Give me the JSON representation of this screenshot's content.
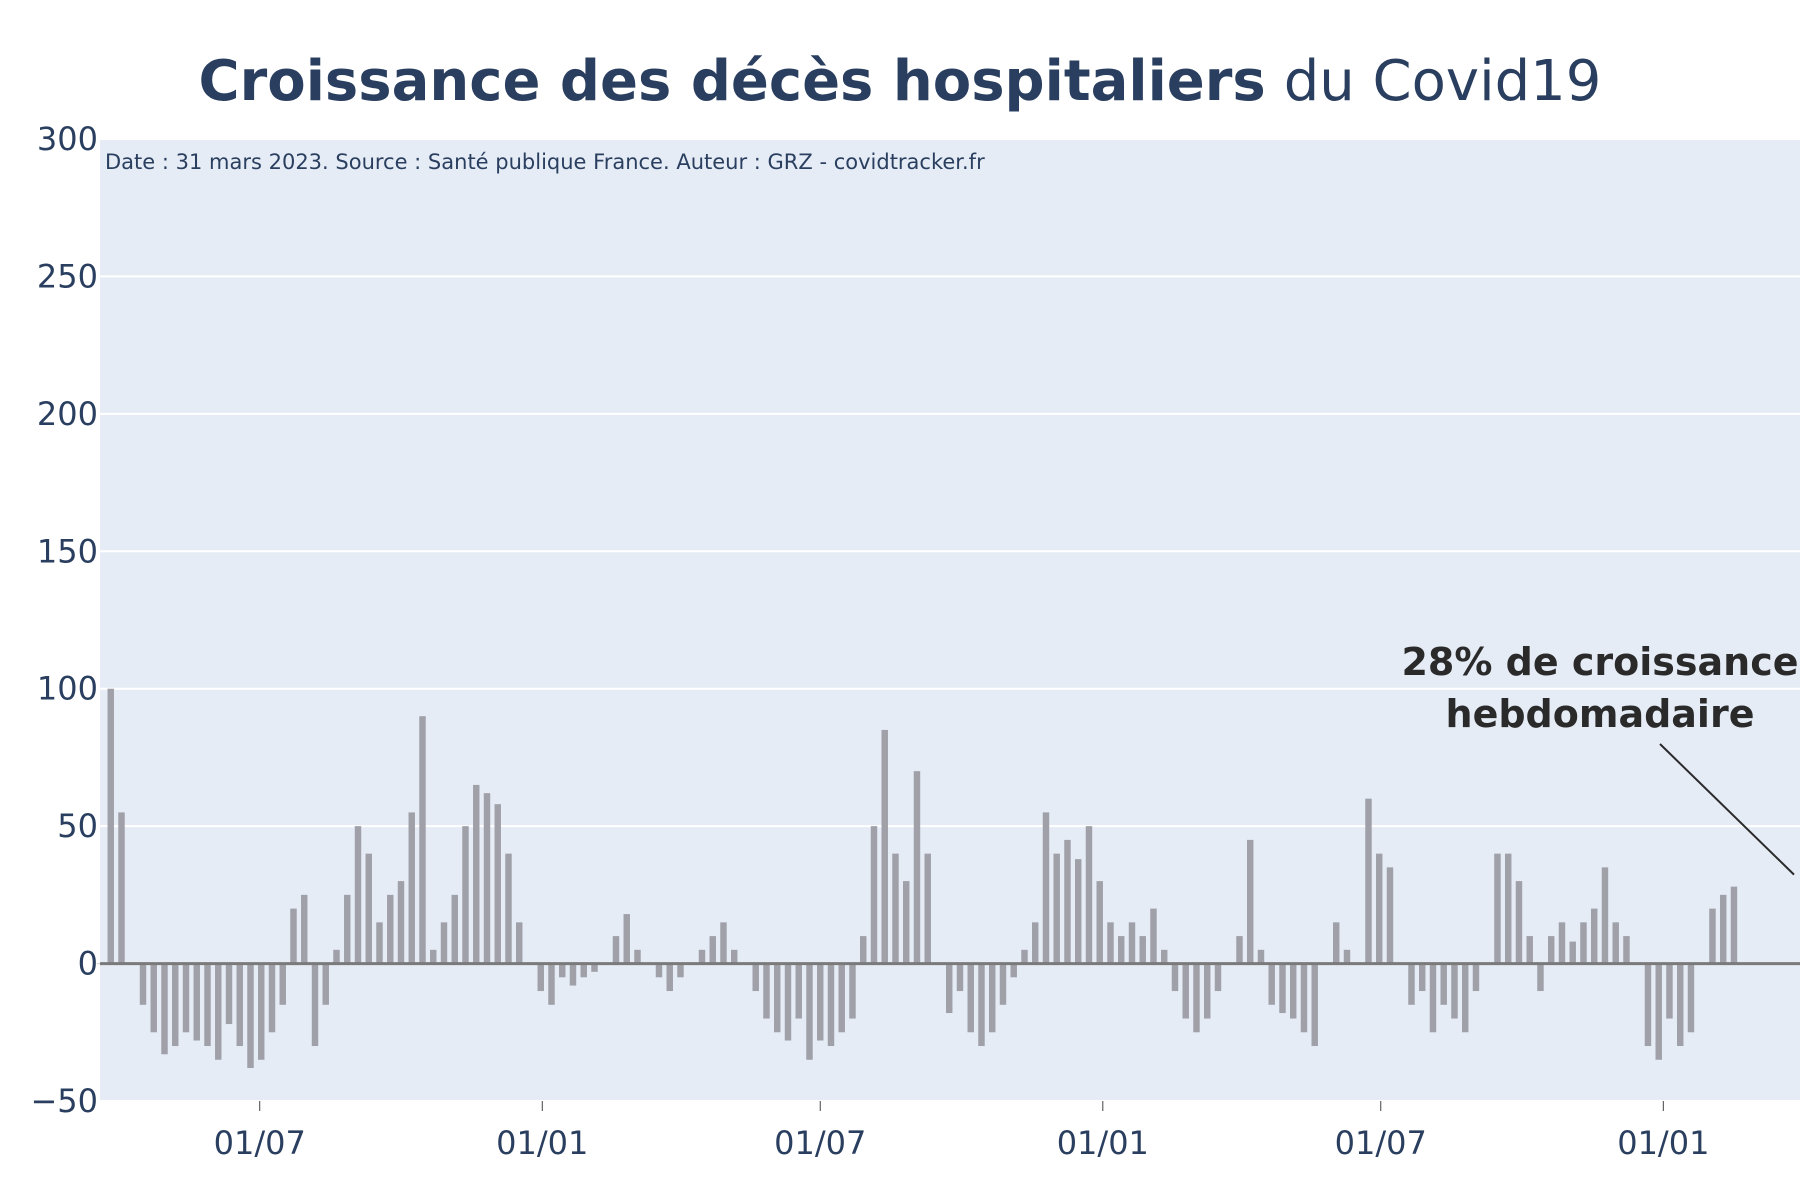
{
  "chart_data": {
    "type": "bar",
    "title": "Croissance des décès hospitaliers",
    "title_suffix": "du Covid19",
    "subtitle": "Date : 31 mars 2023. Source : Santé publique France. Auteur : GRZ - covidtracker.fr",
    "xlabel": "",
    "ylabel": "",
    "ylim": [
      -50,
      300
    ],
    "yticks": [
      -50,
      0,
      50,
      100,
      150,
      200,
      250,
      300
    ],
    "ytick_labels": [
      "−50",
      "0",
      "50",
      "100",
      "150",
      "200",
      "250",
      "300"
    ],
    "x_range": [
      "2020-03-19",
      "2023-03-31"
    ],
    "xticks": [
      {
        "date": "2020-07-01",
        "label": "01/07"
      },
      {
        "date": "2021-01-01",
        "label": "01/01"
      },
      {
        "date": "2021-07-01",
        "label": "01/07"
      },
      {
        "date": "2022-01-01",
        "label": "01/01"
      },
      {
        "date": "2022-07-01",
        "label": "01/07"
      },
      {
        "date": "2023-01-01",
        "label": "01/01"
      }
    ],
    "grid": true,
    "bar_color": "#a0a0a8",
    "plot_bg": "#e5ecf6",
    "annotation": {
      "text_line1": "28% de croissance",
      "text_line2": "hebdomadaire",
      "value": 28,
      "points_to_date": "2023-03-31"
    },
    "series": [
      {
        "x_start": "2020-03-19",
        "step_days": 7,
        "values": [
          0,
          100,
          55,
          0,
          -15,
          -25,
          -33,
          -30,
          -25,
          -28,
          -30,
          -35,
          -22,
          -30,
          -38,
          -35,
          -25,
          -15,
          20,
          25,
          -30,
          -15,
          5,
          25,
          50,
          40,
          15,
          25,
          30,
          55,
          90,
          5,
          15,
          25,
          50,
          65,
          62,
          58,
          40,
          15,
          0,
          -10,
          -15,
          -5,
          -8,
          -5,
          -3,
          0,
          10,
          18,
          5,
          0,
          -5,
          -10,
          -5,
          0,
          5,
          10,
          15,
          5,
          0,
          -10,
          -20,
          -25,
          -28,
          -20,
          -35,
          -28,
          -30,
          -25,
          -20,
          10,
          50,
          85,
          40,
          30,
          70,
          40,
          0,
          -18,
          -10,
          -25,
          -30,
          -25,
          -15,
          -5,
          5,
          15,
          55,
          40,
          45,
          38,
          50,
          30,
          15,
          10,
          15,
          10,
          20,
          5,
          -10,
          -20,
          -25,
          -20,
          -10,
          0,
          10,
          45,
          5,
          -15,
          -18,
          -20,
          -25,
          -30,
          0,
          15,
          5,
          0,
          60,
          40,
          35,
          0,
          -15,
          -10,
          -25,
          -15,
          -20,
          -25,
          -10,
          0,
          40,
          40,
          30,
          10,
          -10,
          10,
          15,
          8,
          15,
          20,
          35,
          15,
          10,
          0,
          -30,
          -35,
          -20,
          -30,
          -25,
          0,
          20,
          25,
          28
        ]
      }
    ]
  }
}
